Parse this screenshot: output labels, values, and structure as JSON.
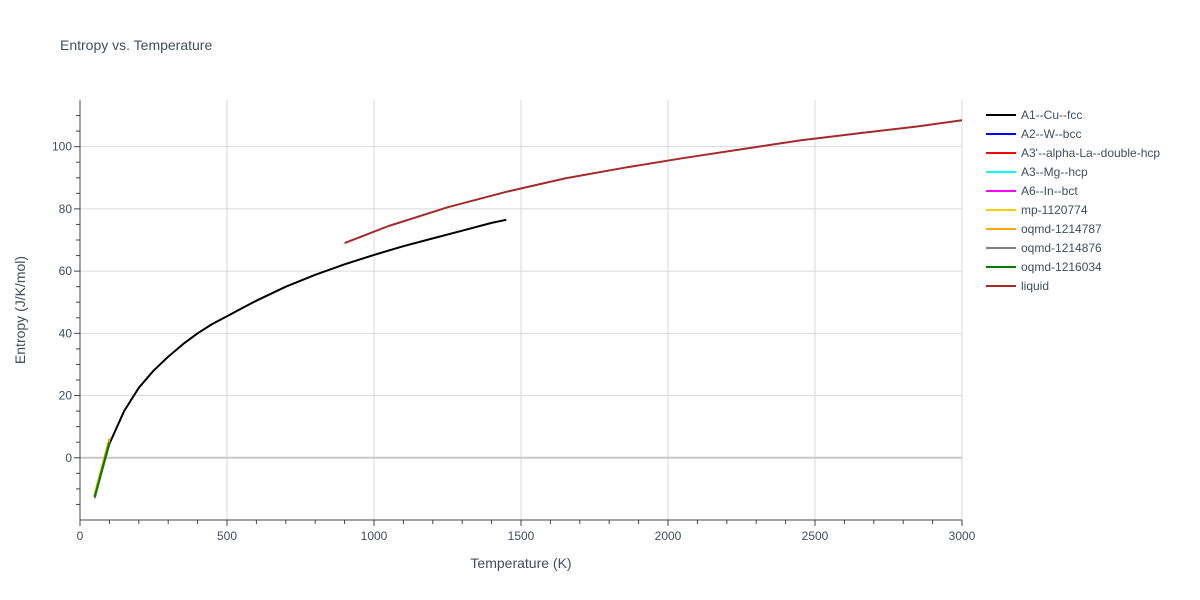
{
  "chart_data": {
    "type": "line",
    "title": "Entropy vs. Temperature",
    "xlabel": "Temperature (K)",
    "ylabel": "Entropy (J/K/mol)",
    "xlim": [
      0,
      3000
    ],
    "ylim": [
      -20,
      115
    ],
    "x_ticks": [
      0,
      500,
      1000,
      1500,
      2000,
      2500,
      3000
    ],
    "x_tick_labels": [
      "0",
      "500",
      "1000",
      "1500",
      "2000",
      "2500",
      "3000"
    ],
    "y_ticks": [
      0,
      20,
      40,
      60,
      80,
      100
    ],
    "y_tick_labels": [
      "0",
      "20",
      "40",
      "60",
      "80",
      "100"
    ],
    "grid": true,
    "legend_position": "right",
    "series": [
      {
        "name": "A1--Cu--fcc",
        "color": "#000000",
        "x": [
          50,
          100,
          150,
          200,
          250,
          300,
          350,
          400,
          450,
          500,
          550,
          600,
          700,
          800,
          900,
          1000,
          1100,
          1200,
          1300,
          1400,
          1450
        ],
        "y": [
          -12.5,
          4.5,
          15,
          22.5,
          28,
          32.5,
          36.5,
          40,
          43,
          45.5,
          48,
          50.5,
          55,
          58.8,
          62.2,
          65.2,
          68,
          70.5,
          73,
          75.5,
          76.5
        ]
      },
      {
        "name": "A2--W--bcc",
        "color": "#0000ff",
        "x": [
          50,
          100
        ],
        "y": [
          -12.3,
          5.3
        ]
      },
      {
        "name": "A3'--alpha-La--double-hcp",
        "color": "#ff0000",
        "x": [
          50,
          100
        ],
        "y": [
          -12.2,
          5.5
        ]
      },
      {
        "name": "A3--Mg--hcp",
        "color": "#00ffff",
        "x": [
          50,
          100
        ],
        "y": [
          -12.4,
          5.2
        ]
      },
      {
        "name": "A6--In--bct",
        "color": "#ff00ff",
        "x": [
          50,
          100
        ],
        "y": [
          -12.1,
          5.6
        ]
      },
      {
        "name": "mp-1120774",
        "color": "#ffcc00",
        "x": [
          50,
          100
        ],
        "y": [
          -11.5,
          6.2
        ]
      },
      {
        "name": "oqmd-1214787",
        "color": "#ffa500",
        "x": [
          50,
          100
        ],
        "y": [
          -11.8,
          6
        ]
      },
      {
        "name": "oqmd-1214876",
        "color": "#808080",
        "x": [
          50,
          100
        ],
        "y": [
          -13,
          4.8
        ]
      },
      {
        "name": "oqmd-1216034",
        "color": "#008000",
        "x": [
          50,
          100
        ],
        "y": [
          -12.6,
          5
        ]
      },
      {
        "name": "liquid",
        "color": "#a52a2a",
        "x": [
          900,
          1050,
          1250,
          1450,
          1650,
          1850,
          2050,
          2250,
          2450,
          2650,
          2850,
          3000
        ],
        "y": [
          69,
          74.5,
          80.5,
          85.5,
          89.8,
          93.2,
          96.3,
          99.2,
          102,
          104.3,
          106.5,
          108.5
        ]
      }
    ]
  }
}
